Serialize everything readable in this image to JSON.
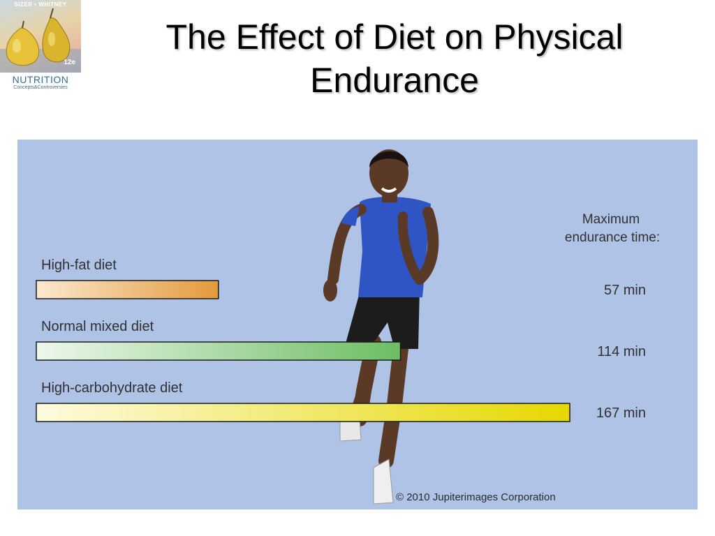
{
  "logo": {
    "authors": "SIZER • WHITNEY",
    "edition": "12e",
    "title": "NUTRITION",
    "subtitle": "Concepts&Controversies"
  },
  "title": "The Effect of Diet on Physical Endurance",
  "credit": "© 2010 Jupiterimages Corporation",
  "colors": {
    "panel_bg": "#afc3e6",
    "high_fat": "#e39a3a",
    "normal_mixed": "#6cbd63",
    "high_carb": "#e6d800"
  },
  "chart_data": {
    "type": "bar",
    "orientation": "horizontal",
    "value_header": "Maximum endurance time:",
    "categories": [
      "High-fat diet",
      "Normal mixed diet",
      "High-carbohydrate diet"
    ],
    "values": [
      57,
      114,
      167
    ],
    "value_labels": [
      "57 min",
      "114 min",
      "167 min"
    ],
    "unit": "min",
    "xlim": [
      0,
      167
    ],
    "grid": false,
    "legend": "none"
  }
}
